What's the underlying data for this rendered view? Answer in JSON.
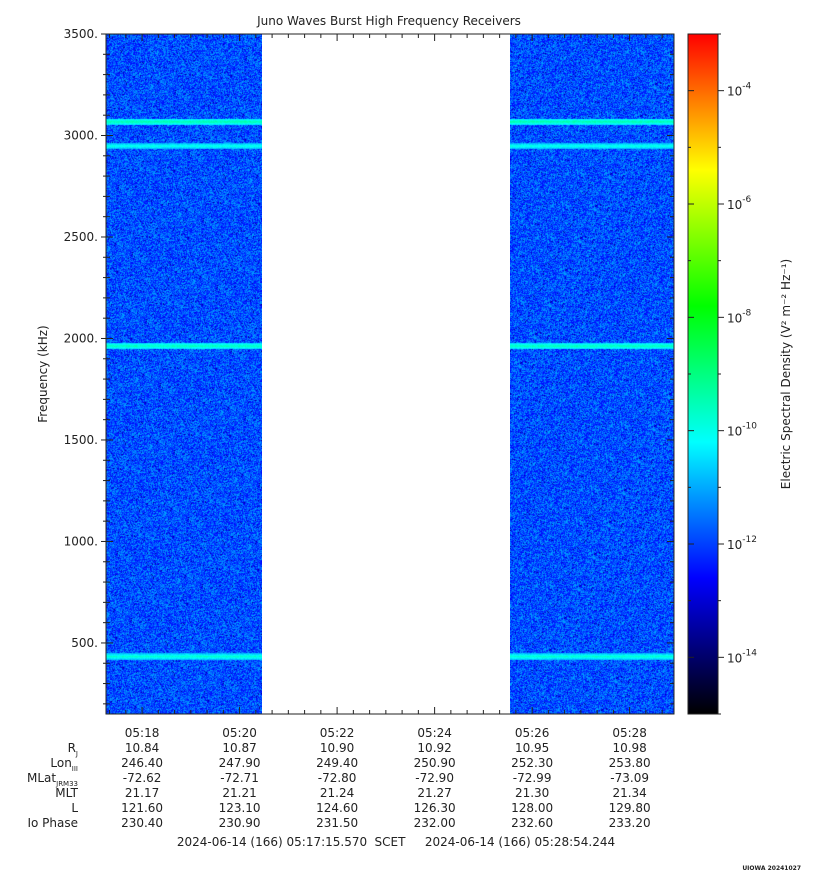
{
  "chart_data": {
    "type": "heatmap",
    "title": "Juno Waves Burst High Frequency Receivers",
    "ylabel": "Frequency (kHz)",
    "ylim": [
      150,
      3500
    ],
    "y_ticks": [
      "500.",
      "1000.",
      "1500.",
      "2000.",
      "2500.",
      "3000.",
      "3500."
    ],
    "y_tick_values": [
      500,
      1000,
      1500,
      2000,
      2500,
      3000,
      3500
    ],
    "x_tick_labels": [
      "05:18",
      "05:20",
      "05:22",
      "05:24",
      "05:26",
      "05:28"
    ],
    "x_tick_minutes": [
      18,
      20,
      22,
      24,
      26,
      28
    ],
    "time_range_minutes": [
      17.26,
      28.91
    ],
    "data_segments_minutes": [
      [
        17.26,
        20.45
      ],
      [
        25.55,
        28.91
      ]
    ],
    "background_log_density": -11.8,
    "emission_bands": [
      {
        "freq_khz": 3070,
        "log_density": -9.4
      },
      {
        "freq_khz": 2950,
        "log_density": -9.9
      },
      {
        "freq_khz": 1965,
        "log_density": -9.5
      },
      {
        "freq_khz": 435,
        "log_density": -9.7
      }
    ],
    "colorbar": {
      "label": "Electric Spectral Density (V² m⁻² Hz⁻¹)",
      "log_range": [
        -15,
        -3
      ],
      "tick_exponents": [
        "-4",
        "-6",
        "-8",
        "-10",
        "-12",
        "-14"
      ],
      "tick_values": [
        -4,
        -6,
        -8,
        -10,
        -12,
        -14
      ],
      "colors": [
        "#000000",
        "#00007f",
        "#0000ff",
        "#007fff",
        "#00ffff",
        "#00ff80",
        "#00ff00",
        "#80ff00",
        "#ffff00",
        "#ff8000",
        "#ff0000"
      ]
    },
    "ephemeris": {
      "row_labels": [
        "R",
        "Lon",
        "MLat",
        "MLT",
        "L",
        "Io Phase"
      ],
      "row_label_subscripts": [
        "J",
        "III",
        "JRM33",
        "",
        "",
        ""
      ],
      "columns": [
        [
          "10.84",
          "246.40",
          "-72.62",
          "21.17",
          "121.60",
          "230.40"
        ],
        [
          "10.87",
          "247.90",
          "-72.71",
          "21.21",
          "123.10",
          "230.90"
        ],
        [
          "10.90",
          "249.40",
          "-72.80",
          "21.24",
          "124.60",
          "231.50"
        ],
        [
          "10.92",
          "250.90",
          "-72.90",
          "21.27",
          "126.30",
          "232.00"
        ],
        [
          "10.95",
          "252.30",
          "-72.99",
          "21.30",
          "128.00",
          "232.60"
        ],
        [
          "10.98",
          "253.80",
          "-73.09",
          "21.34",
          "129.80",
          "233.20"
        ]
      ]
    },
    "time_span": {
      "start": "2024-06-14 (166) 05:17:15.570",
      "scale": "SCET",
      "end": "2024-06-14 (166) 05:28:54.244"
    }
  },
  "stamp": "UIOWA 20241027"
}
